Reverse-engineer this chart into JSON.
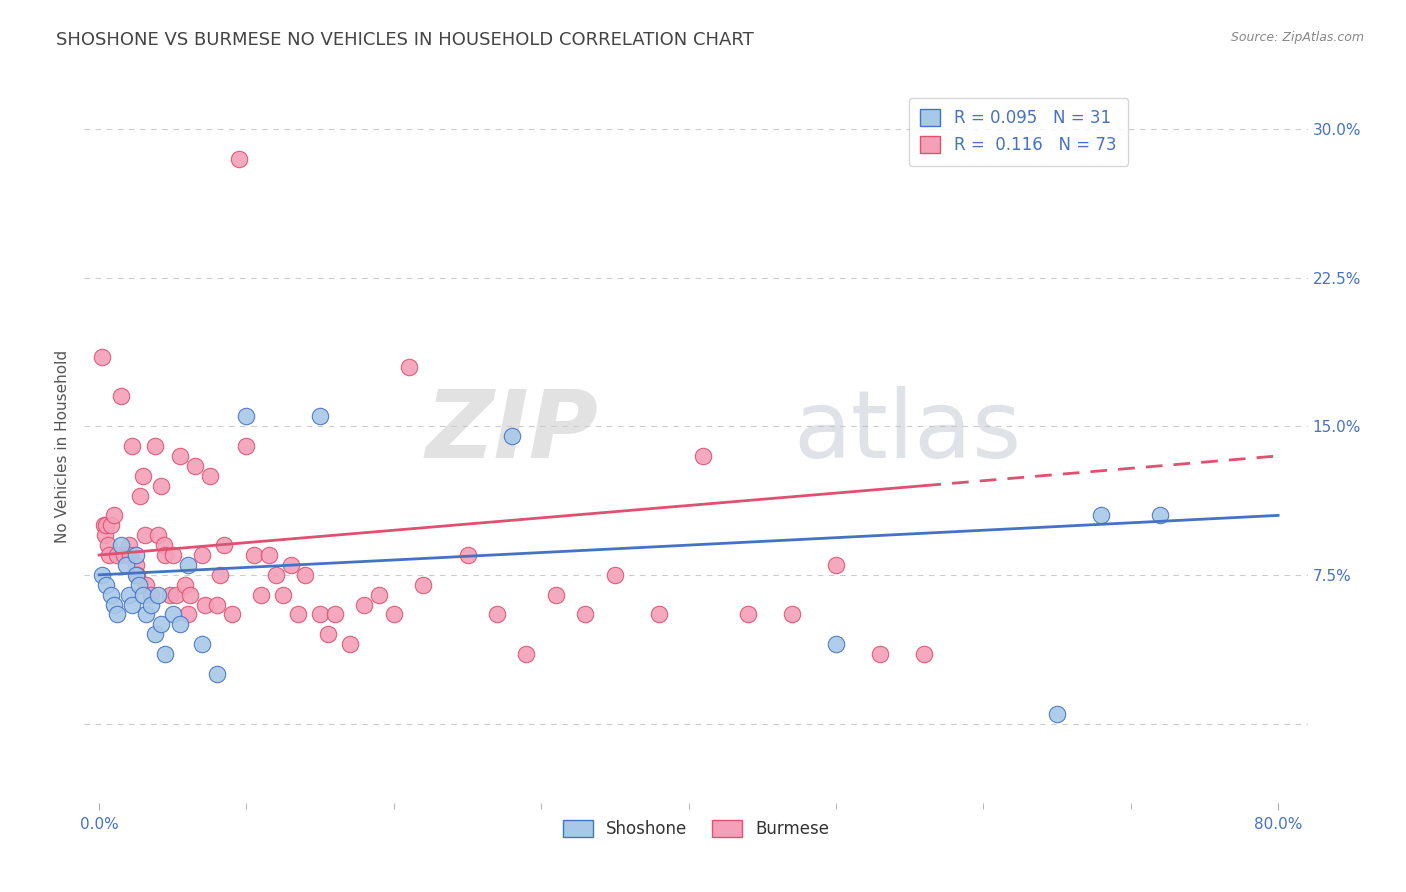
{
  "title": "SHOSHONE VS BURMESE NO VEHICLES IN HOUSEHOLD CORRELATION CHART",
  "source": "Source: ZipAtlas.com",
  "ylabel": "No Vehicles in Household",
  "shoshone_color": "#a8c8e8",
  "burmese_color": "#f4a0b8",
  "shoshone_line_color": "#4472c4",
  "burmese_line_color": "#e05070",
  "R_shoshone": 0.095,
  "N_shoshone": 31,
  "R_burmese": 0.116,
  "N_burmese": 73,
  "shoshone_x": [
    0.002,
    0.005,
    0.008,
    0.01,
    0.012,
    0.015,
    0.018,
    0.02,
    0.022,
    0.025,
    0.025,
    0.027,
    0.03,
    0.032,
    0.035,
    0.038,
    0.04,
    0.042,
    0.045,
    0.05,
    0.055,
    0.06,
    0.07,
    0.08,
    0.1,
    0.15,
    0.28,
    0.5,
    0.65,
    0.68,
    0.72
  ],
  "shoshone_y": [
    0.075,
    0.07,
    0.065,
    0.06,
    0.055,
    0.09,
    0.08,
    0.065,
    0.06,
    0.075,
    0.085,
    0.07,
    0.065,
    0.055,
    0.06,
    0.045,
    0.065,
    0.05,
    0.035,
    0.055,
    0.05,
    0.08,
    0.04,
    0.025,
    0.155,
    0.155,
    0.145,
    0.04,
    0.005,
    0.105,
    0.105
  ],
  "burmese_x": [
    0.002,
    0.003,
    0.004,
    0.005,
    0.006,
    0.007,
    0.008,
    0.01,
    0.012,
    0.015,
    0.017,
    0.02,
    0.021,
    0.022,
    0.025,
    0.026,
    0.028,
    0.03,
    0.031,
    0.032,
    0.035,
    0.038,
    0.04,
    0.042,
    0.044,
    0.045,
    0.048,
    0.05,
    0.052,
    0.055,
    0.058,
    0.06,
    0.062,
    0.065,
    0.07,
    0.072,
    0.075,
    0.08,
    0.082,
    0.085,
    0.09,
    0.095,
    0.1,
    0.105,
    0.11,
    0.115,
    0.12,
    0.125,
    0.13,
    0.135,
    0.14,
    0.15,
    0.155,
    0.16,
    0.17,
    0.18,
    0.19,
    0.2,
    0.21,
    0.22,
    0.25,
    0.27,
    0.29,
    0.31,
    0.33,
    0.35,
    0.38,
    0.41,
    0.44,
    0.47,
    0.5,
    0.53,
    0.56
  ],
  "burmese_y": [
    0.185,
    0.1,
    0.095,
    0.1,
    0.09,
    0.085,
    0.1,
    0.105,
    0.085,
    0.165,
    0.085,
    0.09,
    0.085,
    0.14,
    0.08,
    0.075,
    0.115,
    0.125,
    0.095,
    0.07,
    0.065,
    0.14,
    0.095,
    0.12,
    0.09,
    0.085,
    0.065,
    0.085,
    0.065,
    0.135,
    0.07,
    0.055,
    0.065,
    0.13,
    0.085,
    0.06,
    0.125,
    0.06,
    0.075,
    0.09,
    0.055,
    0.285,
    0.14,
    0.085,
    0.065,
    0.085,
    0.075,
    0.065,
    0.08,
    0.055,
    0.075,
    0.055,
    0.045,
    0.055,
    0.04,
    0.06,
    0.065,
    0.055,
    0.18,
    0.07,
    0.085,
    0.055,
    0.035,
    0.065,
    0.055,
    0.075,
    0.055,
    0.135,
    0.055,
    0.055,
    0.08,
    0.035,
    0.035
  ],
  "xlim": [
    -0.01,
    0.82
  ],
  "ylim": [
    -0.04,
    0.32
  ],
  "y_ticks": [
    0.0,
    0.075,
    0.15,
    0.225,
    0.3
  ],
  "y_tick_labels": [
    "",
    "7.5%",
    "15.0%",
    "22.5%",
    "30.0%"
  ],
  "watermark_zip": "ZIP",
  "watermark_atlas": "atlas",
  "background_color": "#ffffff",
  "grid_color": "#cccccc",
  "tick_color": "#4472c4",
  "title_color": "#444444",
  "title_fontsize": 13,
  "axis_label_fontsize": 11,
  "tick_fontsize": 11,
  "legend_fontsize": 12
}
